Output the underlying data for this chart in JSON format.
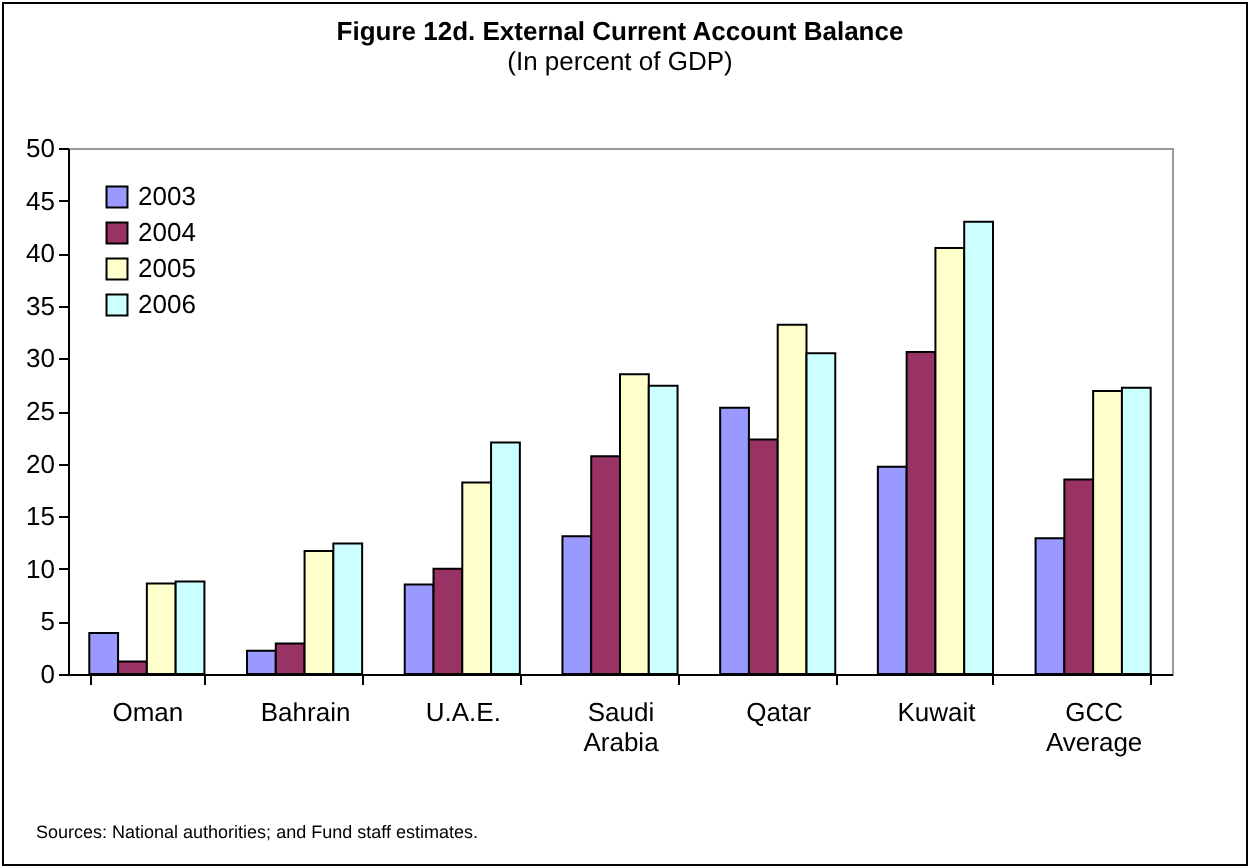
{
  "chart_data": {
    "type": "bar",
    "title": "Figure 12d. External Current Account Balance",
    "subtitle": "(In percent of GDP)",
    "categories": [
      "Oman",
      "Bahrain",
      "U.A.E.",
      "Saudi Arabia",
      "Qatar",
      "Kuwait",
      "GCC Average"
    ],
    "series": [
      {
        "name": "2003",
        "color": "#9999ff",
        "values": [
          3.9,
          2.2,
          8.5,
          13.1,
          25.3,
          19.7,
          12.9
        ]
      },
      {
        "name": "2004",
        "color": "#993366",
        "values": [
          1.2,
          2.9,
          10.0,
          20.7,
          22.3,
          30.6,
          18.5
        ]
      },
      {
        "name": "2005",
        "color": "#ffffcc",
        "values": [
          8.6,
          11.7,
          18.2,
          28.5,
          33.2,
          40.5,
          26.9
        ]
      },
      {
        "name": "2006",
        "color": "#ccffff",
        "values": [
          8.8,
          12.4,
          22.0,
          27.4,
          30.5,
          43.0,
          27.2
        ]
      }
    ],
    "ylim": [
      0,
      50
    ],
    "yticks": [
      0,
      5,
      10,
      15,
      20,
      25,
      30,
      35,
      40,
      45,
      50
    ],
    "grid": false,
    "legend": "top left",
    "annotations": [
      "Sources: National authorities; and Fund staff estimates."
    ]
  }
}
